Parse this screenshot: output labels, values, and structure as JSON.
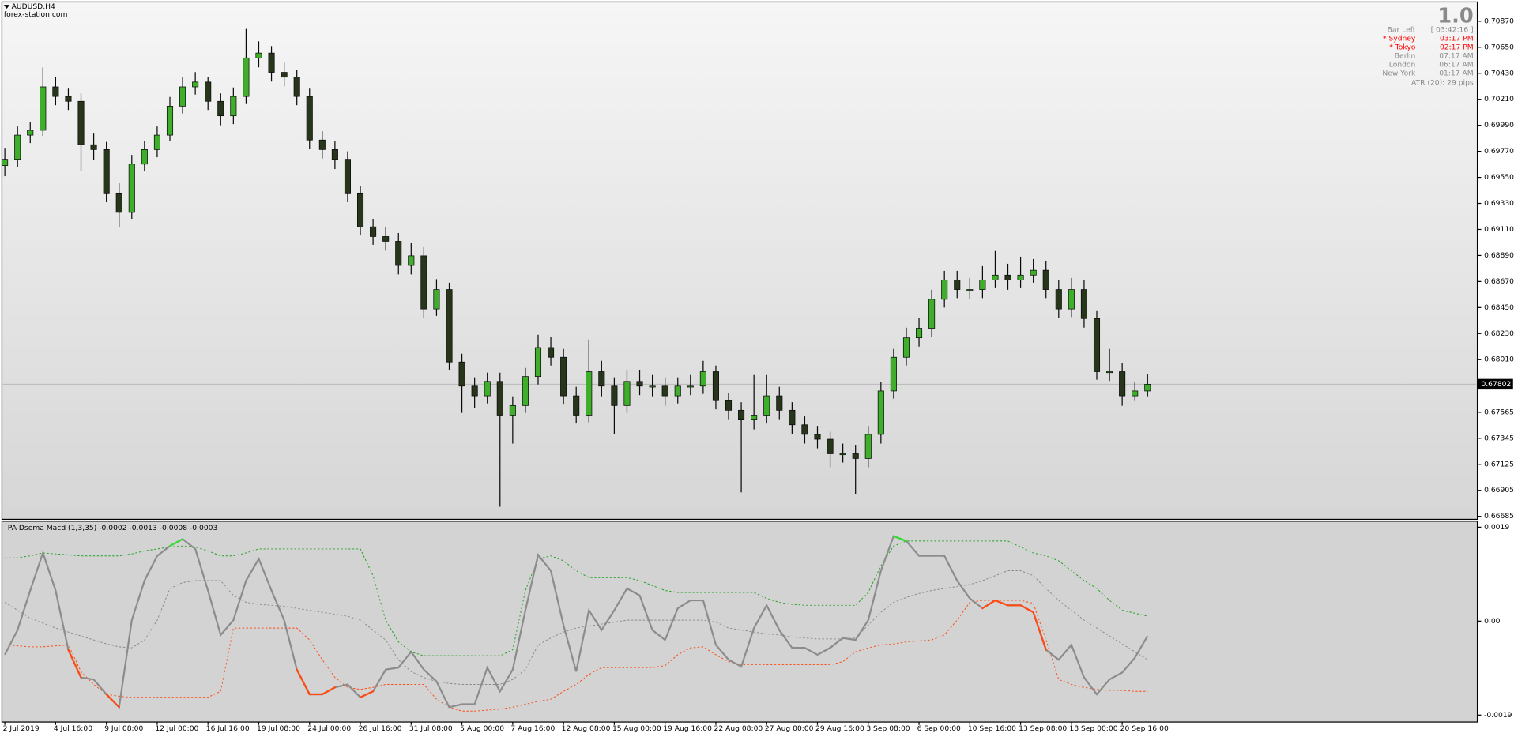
{
  "chart_data": [
    {
      "type": "candlestick",
      "title": "AUDUSD,H4",
      "subtitle": "forex-station.com",
      "categories": [
        "2 Jul 2019",
        null,
        null,
        null,
        "4 Jul 16:00",
        null,
        null,
        null,
        "9 Jul 08:00",
        null,
        null,
        null,
        "12 Jul 00:00",
        null,
        null,
        null,
        "16 Jul 16:00",
        null,
        null,
        null,
        "19 Jul 08:00",
        null,
        null,
        null,
        "24 Jul 00:00",
        null,
        null,
        null,
        "26 Jul 16:00",
        null,
        null,
        null,
        "31 Jul 08:00",
        null,
        null,
        null,
        "5 Aug 00:00",
        null,
        null,
        null,
        "7 Aug 16:00",
        null,
        null,
        null,
        "12 Aug 08:00",
        null,
        null,
        null,
        "15 Aug 00:00",
        null,
        null,
        null,
        "19 Aug 16:00",
        null,
        null,
        null,
        "22 Aug 08:00",
        null,
        null,
        null,
        "27 Aug 00:00",
        null,
        null,
        null,
        "29 Aug 16:00",
        null,
        null,
        null,
        "3 Sep 08:00",
        null,
        null,
        null,
        "6 Sep 00:00",
        null,
        null,
        null,
        "10 Sep 16:00",
        null,
        null,
        null,
        "13 Sep 08:00",
        null,
        null,
        null,
        "18 Sep 00:00",
        null,
        null,
        null,
        "20 Sep 16:00",
        null,
        null
      ],
      "open": [
        0.6965,
        0.69703,
        0.69907,
        0.69948,
        0.70315,
        0.70234,
        0.70193,
        0.69826,
        0.69785,
        0.69418,
        0.69254,
        0.69662,
        0.69785,
        0.69907,
        0.70152,
        0.70315,
        0.70356,
        0.70193,
        0.7007,
        0.70234,
        0.7056,
        0.70601,
        0.70438,
        0.70397,
        0.70234,
        0.69866,
        0.69785,
        0.69703,
        0.69418,
        0.69132,
        0.6905,
        0.6901,
        0.68806,
        0.68887,
        0.68438,
        0.68602,
        0.6799,
        0.67786,
        0.67704,
        0.67826,
        0.67541,
        0.67622,
        0.67867,
        0.68112,
        0.6803,
        0.67704,
        0.67541,
        0.67908,
        0.67786,
        0.67622,
        0.67826,
        0.67786,
        0.67786,
        0.67704,
        0.67786,
        0.67786,
        0.67908,
        0.67663,
        0.67582,
        0.675,
        0.67541,
        0.67704,
        0.67582,
        0.67459,
        0.67378,
        0.67337,
        0.67214,
        0.67214,
        0.67174,
        0.67378,
        0.67745,
        0.6803,
        0.68194,
        0.68275,
        0.6852,
        0.68683,
        0.68602,
        0.68602,
        0.68683,
        0.68724,
        0.68683,
        0.68724,
        0.68765,
        0.68602,
        0.68438,
        0.68602,
        0.68357,
        0.67908,
        0.67908,
        0.67704,
        0.67745
      ],
      "high": [
        0.698,
        0.6998,
        0.7002,
        0.7048,
        0.704,
        0.703,
        0.7026,
        0.6992,
        0.6985,
        0.695,
        0.6974,
        0.6986,
        0.6998,
        0.7023,
        0.704,
        0.7044,
        0.704,
        0.7026,
        0.7031,
        0.70805,
        0.707,
        0.7066,
        0.7052,
        0.7046,
        0.703,
        0.6994,
        0.6986,
        0.6977,
        0.6948,
        0.692,
        0.6913,
        0.6908,
        0.69,
        0.6896,
        0.6869,
        0.6866,
        0.6806,
        0.6786,
        0.679,
        0.679,
        0.677,
        0.6794,
        0.6822,
        0.682,
        0.681,
        0.6778,
        0.6818,
        0.68,
        0.6786,
        0.6792,
        0.6792,
        0.6788,
        0.6786,
        0.6786,
        0.6788,
        0.68,
        0.6796,
        0.6773,
        0.6765,
        0.6788,
        0.6788,
        0.6778,
        0.6765,
        0.6753,
        0.6745,
        0.674,
        0.673,
        0.6729,
        0.6745,
        0.6782,
        0.681,
        0.6828,
        0.6836,
        0.686,
        0.6876,
        0.6876,
        0.687,
        0.688,
        0.68928,
        0.6882,
        0.6888,
        0.6886,
        0.6884,
        0.6868,
        0.687,
        0.6868,
        0.6842,
        0.681,
        0.6798,
        0.6782,
        0.6789
      ],
      "low": [
        0.6956,
        0.6964,
        0.6984,
        0.699,
        0.7016,
        0.7012,
        0.696,
        0.697,
        0.6934,
        0.69132,
        0.692,
        0.696,
        0.6972,
        0.6986,
        0.7009,
        0.7025,
        0.7012,
        0.6999,
        0.7,
        0.7017,
        0.7048,
        0.7036,
        0.7032,
        0.7016,
        0.6979,
        0.6971,
        0.6962,
        0.6934,
        0.6906,
        0.6898,
        0.6893,
        0.6873,
        0.6873,
        0.6836,
        0.6838,
        0.6792,
        0.6756,
        0.676,
        0.6764,
        0.66766,
        0.673,
        0.6756,
        0.678,
        0.6796,
        0.6763,
        0.6747,
        0.6748,
        0.677,
        0.6738,
        0.6756,
        0.6771,
        0.677,
        0.6762,
        0.6764,
        0.6771,
        0.6772,
        0.6759,
        0.675,
        0.66888,
        0.6742,
        0.6747,
        0.675,
        0.6738,
        0.673,
        0.6726,
        0.671,
        0.6714,
        0.66872,
        0.671,
        0.673,
        0.6768,
        0.6796,
        0.6812,
        0.682,
        0.6845,
        0.6853,
        0.6852,
        0.6853,
        0.6862,
        0.686,
        0.6862,
        0.6866,
        0.6853,
        0.6836,
        0.6837,
        0.6828,
        0.6784,
        0.6783,
        0.6762,
        0.6766,
        0.677
      ],
      "close": [
        0.69703,
        0.69907,
        0.69948,
        0.70315,
        0.70234,
        0.70193,
        0.69826,
        0.69785,
        0.69418,
        0.69254,
        0.69662,
        0.69785,
        0.69907,
        0.70152,
        0.70315,
        0.70356,
        0.70193,
        0.7007,
        0.70234,
        0.7056,
        0.70601,
        0.70438,
        0.70397,
        0.70234,
        0.69866,
        0.69785,
        0.69703,
        0.69418,
        0.69132,
        0.6905,
        0.6901,
        0.68806,
        0.68887,
        0.68438,
        0.68602,
        0.6799,
        0.67786,
        0.67704,
        0.67826,
        0.67541,
        0.67622,
        0.67867,
        0.68112,
        0.6803,
        0.67704,
        0.67541,
        0.67908,
        0.67786,
        0.67622,
        0.67826,
        0.67786,
        0.67786,
        0.67704,
        0.67786,
        0.67786,
        0.67908,
        0.67663,
        0.67582,
        0.675,
        0.67541,
        0.67704,
        0.67582,
        0.67459,
        0.67378,
        0.67337,
        0.67214,
        0.67214,
        0.67174,
        0.67378,
        0.67745,
        0.6803,
        0.68194,
        0.68275,
        0.6852,
        0.68683,
        0.68602,
        0.68602,
        0.68683,
        0.68724,
        0.68683,
        0.68724,
        0.68765,
        0.68602,
        0.68438,
        0.68602,
        0.68357,
        0.67908,
        0.67908,
        0.67704,
        0.67745,
        0.67802
      ],
      "up_color": "#3fae2a",
      "down_color": "#27351a",
      "wick_color": "#0a0a0a",
      "ylim": [
        0.6666,
        0.71033
      ],
      "yticks": [
        {
          "value": 0.7087,
          "label": "0.70870"
        },
        {
          "value": 0.7065,
          "label": "0.70650"
        },
        {
          "value": 0.7043,
          "label": "0.70430"
        },
        {
          "value": 0.7021,
          "label": "0.70210"
        },
        {
          "value": 0.6999,
          "label": "0.69990"
        },
        {
          "value": 0.6977,
          "label": "0.69770"
        },
        {
          "value": 0.6955,
          "label": "0.69550"
        },
        {
          "value": 0.6933,
          "label": "0.69330"
        },
        {
          "value": 0.6911,
          "label": "0.69110"
        },
        {
          "value": 0.6889,
          "label": "0.68890"
        },
        {
          "value": 0.6867,
          "label": "0.68670"
        },
        {
          "value": 0.6845,
          "label": "0.68450"
        },
        {
          "value": 0.6823,
          "label": "0.68230"
        },
        {
          "value": 0.6801,
          "label": "0.68010"
        },
        0.67565,
        0.67345,
        0.67125,
        0.66905,
        0.66685
      ],
      "current_price": 0.67802
    },
    {
      "type": "line",
      "title": "PA Dsema Macd (1,3,35) -0.0002 -0.0013 -0.0008 -0.0003",
      "series": [
        {
          "color": "#8c8c8c",
          "style": "solid",
          "values": [
            -0.00068,
            -0.00018,
            0.00062,
            0.00138,
            0.00062,
            -0.00058,
            -0.00114,
            -0.00118,
            -0.00148,
            -0.00174,
            2e-05,
            0.00082,
            0.00132,
            0.00152,
            0.00166,
            0.00146,
            0.00062,
            -0.00028,
            2e-05,
            0.00082,
            0.00126,
            0.00062,
            2e-05,
            -0.00098,
            -0.00148,
            -0.00148,
            -0.00134,
            -0.00128,
            -0.00154,
            -0.00142,
            -0.00098,
            -0.00094,
            -0.00062,
            -0.00098,
            -0.00122,
            -0.00174,
            -0.00168,
            -0.00168,
            -0.00094,
            -0.00142,
            -0.00098,
            0.00022,
            0.00134,
            0.00102,
            -8e-05,
            -0.00102,
            0.00022,
            -0.00018,
            0.00022,
            0.00066,
            0.00052,
            -0.00018,
            -0.00038,
            0.00026,
            0.00042,
            0.00042,
            -0.00048,
            -0.00078,
            -0.00092,
            -0.00014,
            0.00032,
            -0.00018,
            -0.00054,
            -0.00054,
            -0.00068,
            -0.00054,
            -0.00034,
            -0.00038,
            2e-05,
            0.00102,
            0.00172,
            0.00162,
            0.00132,
            0.00132,
            0.00132,
            0.00082,
            0.00046,
            0.00026,
            0.00042,
            0.00032,
            0.00032,
            0.00018,
            -0.00058,
            -0.00078,
            -0.00048,
            -0.00114,
            -0.00148,
            -0.00118,
            -0.00104,
            -0.00074,
            -0.0003
          ]
        },
        {
          "color": "#21a121",
          "style": "dotted",
          "values": [
            0.00128,
            0.00128,
            0.00132,
            0.00138,
            0.00136,
            0.00134,
            0.00132,
            0.00132,
            0.00132,
            0.00132,
            0.00136,
            0.00142,
            0.00146,
            0.0015,
            0.00152,
            0.0015,
            0.00142,
            0.00132,
            0.00132,
            0.00138,
            0.00146,
            0.00146,
            0.00146,
            0.00146,
            0.00146,
            0.00146,
            0.00146,
            0.00146,
            0.00146,
            0.00092,
            2e-05,
            -0.00042,
            -0.00062,
            -0.0007,
            -0.0007,
            -0.0007,
            -0.0007,
            -0.0007,
            -0.0007,
            -0.0007,
            -0.00058,
            0.00062,
            0.00126,
            0.00132,
            0.00122,
            0.00102,
            0.00088,
            0.00088,
            0.00088,
            0.00088,
            0.00082,
            0.00072,
            0.00062,
            0.00058,
            0.00058,
            0.00058,
            0.00058,
            0.00058,
            0.00058,
            0.00058,
            0.00046,
            0.00038,
            0.00034,
            0.00032,
            0.00032,
            0.00032,
            0.00032,
            0.00032,
            0.00058,
            0.00112,
            0.00152,
            0.00162,
            0.00162,
            0.00162,
            0.00162,
            0.00162,
            0.00162,
            0.00162,
            0.00162,
            0.00162,
            0.0015,
            0.00138,
            0.00132,
            0.00122,
            0.00102,
            0.00082,
            0.00066,
            0.00042,
            0.00022,
            0.00016,
            0.0001
          ]
        },
        {
          "color": "#8a8a8a",
          "style": "dotted",
          "values": [
            0.00038,
            0.00022,
            6e-05,
            -4e-05,
            -0.00014,
            -0.00022,
            -0.0003,
            -0.00038,
            -0.00046,
            -0.00052,
            -0.00054,
            -0.00038,
            2e-05,
            0.00066,
            0.00078,
            0.00082,
            0.00082,
            0.00082,
            0.00052,
            0.00038,
            0.00034,
            0.00032,
            0.0003,
            0.00026,
            0.00022,
            0.00018,
            0.00014,
            0.0001,
            2e-05,
            -0.00018,
            -0.00038,
            -0.00078,
            -0.00102,
            -0.00114,
            -0.00122,
            -0.00126,
            -0.00128,
            -0.00128,
            -0.00128,
            -0.00128,
            -0.00118,
            -0.00098,
            -0.00048,
            -0.00034,
            -0.00022,
            -0.00014,
            -0.0001,
            -6e-05,
            -2e-05,
            2e-05,
            2e-05,
            2e-05,
            2e-05,
            2e-05,
            2e-05,
            2e-05,
            -2e-05,
            -0.00014,
            -0.00018,
            -0.00022,
            -0.00026,
            -0.00028,
            -0.00032,
            -0.00034,
            -0.00036,
            -0.00036,
            -0.00036,
            -0.00034,
            -8e-05,
            0.00018,
            0.00038,
            0.00048,
            0.00056,
            0.00062,
            0.00066,
            0.0007,
            0.00074,
            0.00082,
            0.00092,
            0.00102,
            0.00102,
            0.00092,
            0.00066,
            0.00042,
            0.00022,
            2e-05,
            -0.00014,
            -0.0003,
            -0.00046,
            -0.00062,
            -0.00078
          ]
        },
        {
          "color": "#ff4a12",
          "style": "dotted",
          "values": [
            -0.00048,
            -0.0005,
            -0.00052,
            -0.00052,
            -0.0005,
            -0.00048,
            -0.00102,
            -0.00128,
            -0.00148,
            -0.00152,
            -0.00154,
            -0.00154,
            -0.00154,
            -0.00154,
            -0.00154,
            -0.00154,
            -0.00154,
            -0.00142,
            -0.00014,
            -0.00014,
            -0.00014,
            -0.00014,
            -0.00014,
            -0.00014,
            -0.00038,
            -0.00078,
            -0.00114,
            -0.00134,
            -0.00138,
            -0.00134,
            -0.00128,
            -0.00128,
            -0.00128,
            -0.00128,
            -0.00158,
            -0.00174,
            -0.00182,
            -0.00182,
            -0.0018,
            -0.00178,
            -0.00174,
            -0.00168,
            -0.00162,
            -0.00158,
            -0.00142,
            -0.00128,
            -0.00108,
            -0.00094,
            -0.00094,
            -0.00094,
            -0.00094,
            -0.00094,
            -0.0009,
            -0.00068,
            -0.00054,
            -0.00052,
            -0.00068,
            -0.00082,
            -0.00088,
            -0.00088,
            -0.00088,
            -0.00088,
            -0.00088,
            -0.00088,
            -0.00088,
            -0.00088,
            -0.00082,
            -0.00062,
            -0.00054,
            -0.00048,
            -0.00046,
            -0.00042,
            -0.0004,
            -0.00038,
            -0.00028,
            2e-05,
            0.00038,
            0.00042,
            0.00042,
            0.00042,
            0.00042,
            0.00036,
            -0.00038,
            -0.00118,
            -0.00128,
            -0.00134,
            -0.00138,
            -0.0014,
            -0.0014,
            -0.00142,
            -0.00142
          ]
        }
      ],
      "above_color": "#33dd33",
      "below_color": "#ff4a12",
      "ylim": [
        -0.00204,
        0.00202
      ],
      "yticks": [
        0.0019,
        {
          "value": 0,
          "label": "0.00"
        },
        -0.0019
      ]
    }
  ],
  "info_panel": {
    "version": "1.0",
    "rows": [
      {
        "label": "Bar Left",
        "value": "[ 03:42:16 ]",
        "color": "#8a8a8a"
      },
      {
        "label": "* Sydney",
        "value": "03:17 PM",
        "color": "#ff0000"
      },
      {
        "label": "* Tokyo",
        "value": "02:17 PM",
        "color": "#ff0000"
      },
      {
        "label": "Berlin",
        "value": "07:17 AM",
        "color": "#8a8a8a"
      },
      {
        "label": "London",
        "value": "06:17 AM",
        "color": "#8a8a8a"
      },
      {
        "label": "New York",
        "value": "01:17 AM",
        "color": "#8a8a8a"
      }
    ],
    "atr": "ATR (20): 29 pips"
  }
}
